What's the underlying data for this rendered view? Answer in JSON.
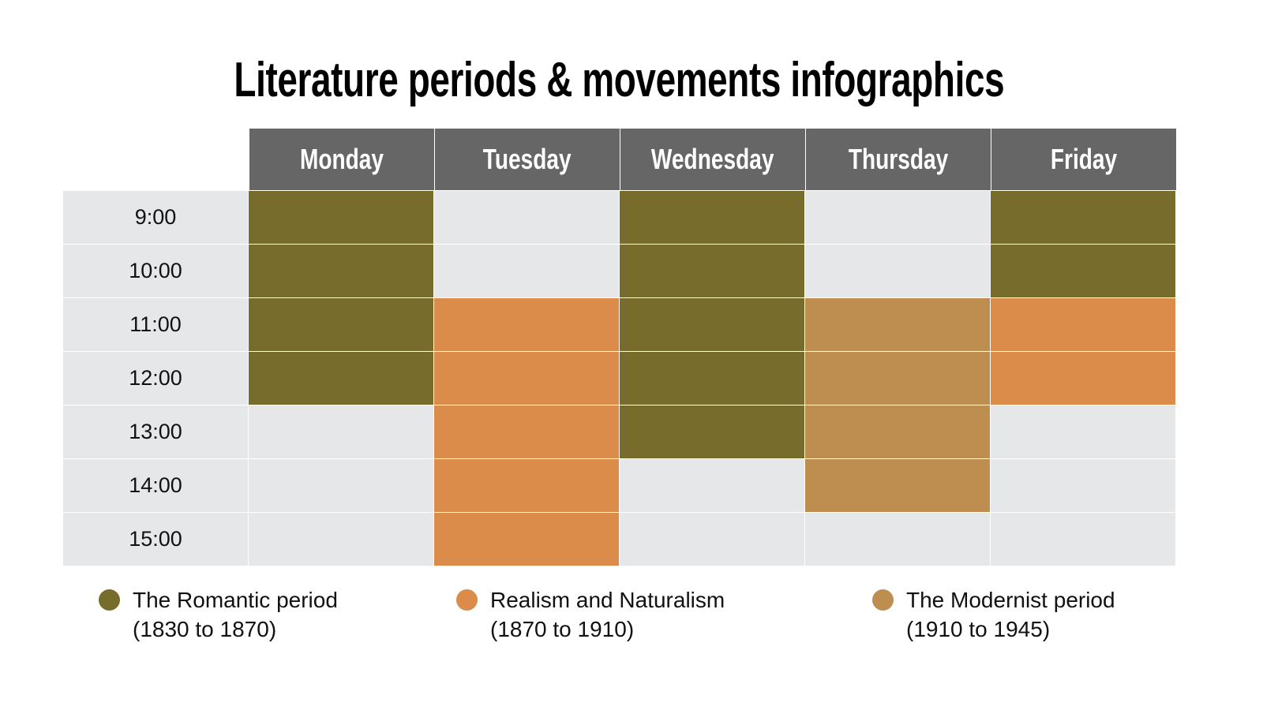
{
  "title": "Literature periods & movements infographics",
  "days": [
    "Monday",
    "Tuesday",
    "Wednesday",
    "Thursday",
    "Friday"
  ],
  "colors": {
    "header": "#666666",
    "empty": "#e5e7e8",
    "romantic": "#786c2c",
    "realism": "#db8b4a",
    "modernist": "#be8e50"
  },
  "rows": [
    {
      "time": "9:00",
      "cells": [
        "romantic",
        null,
        "romantic",
        null,
        "romantic"
      ]
    },
    {
      "time": "10:00",
      "cells": [
        "romantic",
        null,
        "romantic",
        null,
        "romantic"
      ]
    },
    {
      "time": "11:00",
      "cells": [
        "romantic",
        "realism",
        "romantic",
        "modernist",
        "realism"
      ]
    },
    {
      "time": "12:00",
      "cells": [
        "romantic",
        "realism",
        "romantic",
        "modernist",
        "realism"
      ]
    },
    {
      "time": "13:00",
      "cells": [
        null,
        "realism",
        "romantic",
        "modernist",
        null
      ]
    },
    {
      "time": "14:00",
      "cells": [
        null,
        "realism",
        null,
        "modernist",
        null
      ]
    },
    {
      "time": "15:00",
      "cells": [
        null,
        "realism",
        null,
        null,
        null
      ]
    }
  ],
  "legend": [
    {
      "key": "romantic",
      "label": "The Romantic period",
      "range": "(1830 to 1870)"
    },
    {
      "key": "realism",
      "label": "Realism and Naturalism",
      "range": "(1870 to 1910)"
    },
    {
      "key": "modernist",
      "label": "The Modernist period",
      "range": "(1910 to 1945)"
    }
  ]
}
